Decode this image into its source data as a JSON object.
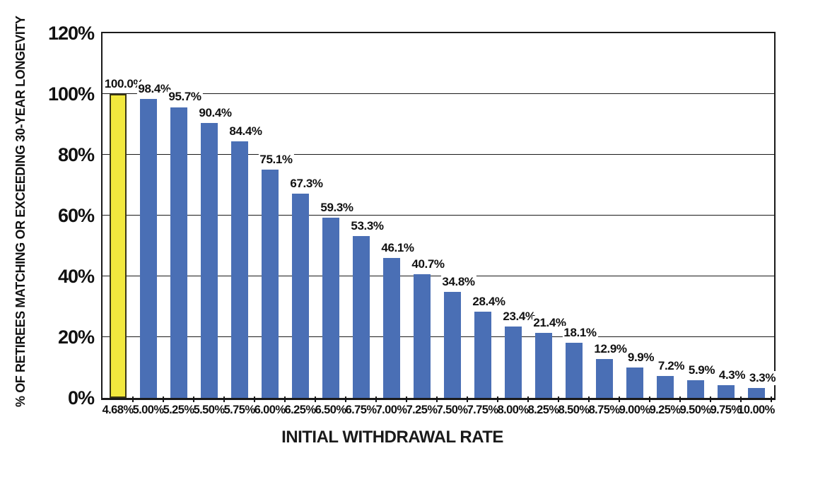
{
  "chart_data": {
    "type": "bar",
    "title": "",
    "xlabel": "INITIAL WITHDRAWAL RATE",
    "ylabel": "% OF RETIREES MATCHING OR EXCEEDING 30-YEAR LONGEVITY",
    "categories": [
      "4.68%",
      "5.00%",
      "5.25%",
      "5.50%",
      "5.75%",
      "6.00%",
      "6.25%",
      "6.50%",
      "6.75%",
      "7.00%",
      "7.25%",
      "7.50%",
      "7.75%",
      "8.00%",
      "8.25%",
      "8.50%",
      "8.75%",
      "9.00%",
      "9.25%",
      "9.50%",
      "9.75%",
      "10.00%"
    ],
    "values": [
      100.0,
      98.4,
      95.7,
      90.4,
      84.4,
      75.1,
      67.3,
      59.3,
      53.3,
      46.1,
      40.7,
      34.8,
      28.4,
      23.4,
      21.4,
      18.1,
      12.9,
      9.9,
      7.2,
      5.9,
      4.3,
      3.3
    ],
    "value_labels": [
      "100.0%",
      "98.4%",
      "95.7%",
      "90.4%",
      "84.4%",
      "75.1%",
      "67.3%",
      "59.3%",
      "53.3%",
      "46.1%",
      "40.7%",
      "34.8%",
      "28.4%",
      "23.4%",
      "21.4%",
      "18.1%",
      "12.9%",
      "9.9%",
      "7.2%",
      "5.9%",
      "4.3%",
      "3.3%"
    ],
    "y_ticks": [
      "0%",
      "20%",
      "40%",
      "60%",
      "80%",
      "100%",
      "120%"
    ],
    "ylim": [
      0,
      120
    ],
    "grid": "horizontal",
    "legend": "none",
    "bar_color": "#4a6fb5",
    "highlight_index": 0,
    "highlight_color": "#f2e83e",
    "highlight_border_color": "#3b3716",
    "axis_color": "#1a1a1a",
    "background_color": "#ffffff"
  }
}
